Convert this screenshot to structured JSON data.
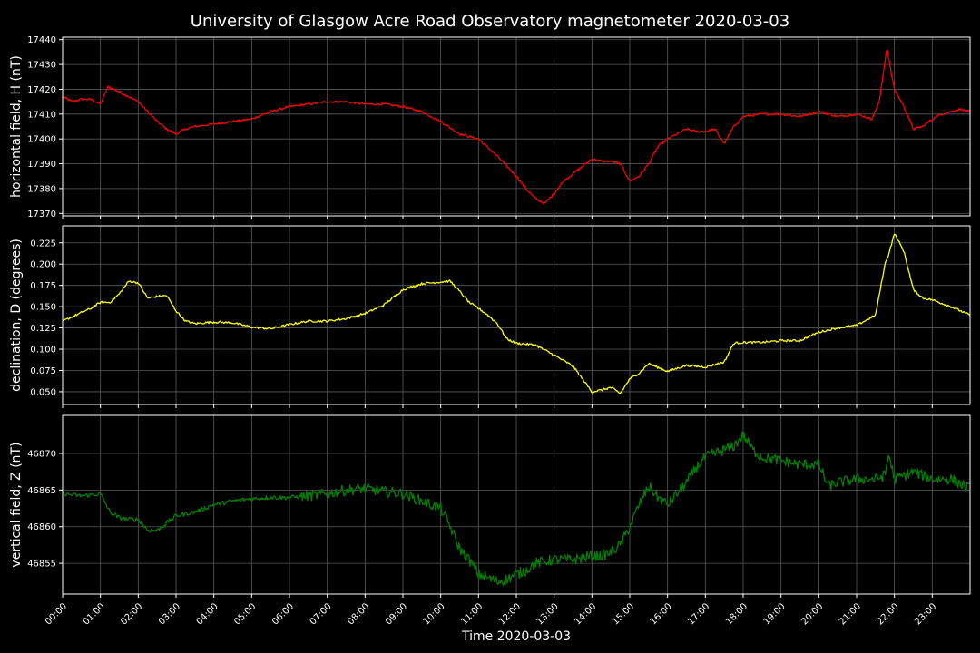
{
  "chart_data": {
    "type": "line",
    "title": "University of Glasgow Acre Road Observatory magnetometer 2020-03-03",
    "xlabel": "Time 2020-03-03",
    "x_ticks": [
      "00:00",
      "01:00",
      "02:00",
      "03:00",
      "04:00",
      "05:00",
      "06:00",
      "07:00",
      "08:00",
      "09:00",
      "10:00",
      "11:00",
      "12:00",
      "13:00",
      "14:00",
      "15:00",
      "16:00",
      "17:00",
      "18:00",
      "19:00",
      "20:00",
      "21:00",
      "22:00",
      "23:00"
    ],
    "x_range_hours": [
      0,
      24
    ],
    "grid": true,
    "background": "#000000",
    "panels": [
      {
        "ylabel": "horizontal field, H (nT)",
        "color": "#ff0000",
        "ylim": [
          17369,
          17441
        ],
        "yticks": [
          17370,
          17380,
          17390,
          17400,
          17410,
          17420,
          17430,
          17440
        ],
        "x_hours": [
          0,
          0.25,
          0.5,
          0.75,
          1,
          1.2,
          1.5,
          1.75,
          2,
          2.25,
          2.5,
          2.75,
          3,
          3.25,
          3.5,
          4,
          4.5,
          5,
          5.5,
          6,
          6.5,
          7,
          7.5,
          8,
          8.5,
          9,
          9.5,
          10,
          10.5,
          11,
          11.5,
          12,
          12.25,
          12.5,
          12.75,
          13,
          13.25,
          13.5,
          13.75,
          14,
          14.25,
          14.5,
          14.75,
          15,
          15.25,
          15.5,
          15.75,
          16,
          16.25,
          16.5,
          16.75,
          17,
          17.25,
          17.5,
          17.75,
          18,
          18.5,
          19,
          19.5,
          20,
          20.5,
          21,
          21.4,
          21.6,
          21.8,
          21.9,
          22,
          22.25,
          22.5,
          22.75,
          23,
          23.25,
          23.5,
          23.75,
          24
        ],
        "values": [
          17417,
          17415,
          17416,
          17416,
          17414,
          17421,
          17419,
          17417,
          17415,
          17411,
          17407,
          17404,
          17402,
          17404,
          17405,
          17406,
          17407,
          17408,
          17411,
          17413,
          17414,
          17415,
          17415,
          17414,
          17414,
          17413,
          17411,
          17407,
          17402,
          17400,
          17393,
          17385,
          17380,
          17376,
          17374,
          17378,
          17383,
          17386,
          17389,
          17392,
          17391,
          17391,
          17390,
          17383,
          17385,
          17390,
          17397,
          17400,
          17402,
          17404,
          17403,
          17403,
          17404,
          17398,
          17405,
          17409,
          17410,
          17410,
          17409,
          17411,
          17409,
          17410,
          17408,
          17415,
          17437,
          17428,
          17420,
          17413,
          17404,
          17405,
          17408,
          17410,
          17411,
          17412,
          17411
        ]
      },
      {
        "ylabel": "declination, D (degrees)",
        "color": "#ffff00",
        "ylim": [
          0.035,
          0.245
        ],
        "yticks": [
          0.05,
          0.075,
          0.1,
          0.125,
          0.15,
          0.175,
          0.2,
          0.225
        ],
        "ytick_labels": [
          "0.050",
          "0.075",
          "0.100",
          "0.125",
          "0.150",
          "0.175",
          "0.200",
          "0.225"
        ],
        "x_hours": [
          0,
          0.25,
          0.5,
          0.75,
          1,
          1.25,
          1.5,
          1.75,
          2,
          2.25,
          2.5,
          2.75,
          3,
          3.25,
          3.5,
          4,
          4.5,
          5,
          5.5,
          6,
          6.5,
          7,
          7.5,
          8,
          8.5,
          9,
          9.5,
          10,
          10.25,
          10.5,
          10.75,
          11,
          11.25,
          11.5,
          11.75,
          12,
          12.5,
          13,
          13.5,
          14,
          14.25,
          14.5,
          14.75,
          15,
          15.25,
          15.5,
          16,
          16.5,
          17,
          17.5,
          17.75,
          18,
          18.5,
          19,
          19.5,
          20,
          20.5,
          21,
          21.5,
          21.75,
          21.85,
          22,
          22.25,
          22.5,
          22.75,
          23,
          23.5,
          24
        ],
        "values": [
          0.133,
          0.138,
          0.143,
          0.148,
          0.155,
          0.155,
          0.165,
          0.18,
          0.178,
          0.16,
          0.162,
          0.163,
          0.145,
          0.133,
          0.13,
          0.132,
          0.131,
          0.126,
          0.124,
          0.129,
          0.133,
          0.133,
          0.136,
          0.142,
          0.152,
          0.17,
          0.177,
          0.179,
          0.18,
          0.168,
          0.155,
          0.148,
          0.14,
          0.13,
          0.112,
          0.107,
          0.105,
          0.093,
          0.08,
          0.05,
          0.052,
          0.055,
          0.048,
          0.065,
          0.072,
          0.083,
          0.074,
          0.081,
          0.079,
          0.085,
          0.107,
          0.108,
          0.108,
          0.11,
          0.11,
          0.12,
          0.125,
          0.128,
          0.14,
          0.2,
          0.212,
          0.236,
          0.215,
          0.17,
          0.16,
          0.158,
          0.15,
          0.14
        ]
      },
      {
        "ylabel": "vertical field, Z (nT)",
        "color": "#008000",
        "ylim": [
          46850.8,
          46875.2
        ],
        "yticks": [
          46855,
          46860,
          46865,
          46870
        ],
        "x_hours": [
          0,
          0.5,
          1,
          1.25,
          1.5,
          1.75,
          2,
          2.25,
          2.5,
          2.75,
          3,
          3.5,
          4,
          4.5,
          5,
          5.5,
          6,
          6.5,
          7,
          7.5,
          8,
          8.5,
          9,
          9.5,
          10,
          10.25,
          10.5,
          10.75,
          11,
          11.25,
          11.5,
          11.75,
          12,
          12.25,
          12.5,
          13,
          13.5,
          14,
          14.25,
          14.5,
          14.75,
          15,
          15.25,
          15.5,
          15.75,
          16,
          16.25,
          16.5,
          16.75,
          17,
          17.25,
          17.5,
          17.75,
          18,
          18.25,
          18.5,
          19,
          19.5,
          20,
          20.25,
          20.5,
          21,
          21.5,
          21.75,
          21.85,
          22,
          22.5,
          23,
          23.5,
          24
        ],
        "values": [
          46864.5,
          46864.2,
          46864.5,
          46862,
          46861.2,
          46861,
          46861,
          46859.5,
          46859.5,
          46860.5,
          46861.5,
          46862,
          46863,
          46863.5,
          46863.8,
          46864,
          46864,
          46864.2,
          46864.5,
          46865,
          46865.2,
          46864.8,
          46864.5,
          46863.5,
          46862.5,
          46860,
          46857,
          46855.5,
          46853.5,
          46853,
          46852.5,
          46852.8,
          46853.5,
          46854,
          46855,
          46855.5,
          46855.5,
          46856,
          46856,
          46856.5,
          46857.5,
          46860,
          46863,
          46865.5,
          46864,
          46863,
          46864.5,
          46866,
          46868,
          46869.5,
          46870,
          46870.5,
          46871,
          46872.5,
          46870.5,
          46869.5,
          46869,
          46868.5,
          46868.5,
          46865.5,
          46866,
          46866.5,
          46866.5,
          46867,
          46870,
          46866.5,
          46867.5,
          46866.5,
          46866.5,
          46865.2
        ]
      }
    ]
  }
}
